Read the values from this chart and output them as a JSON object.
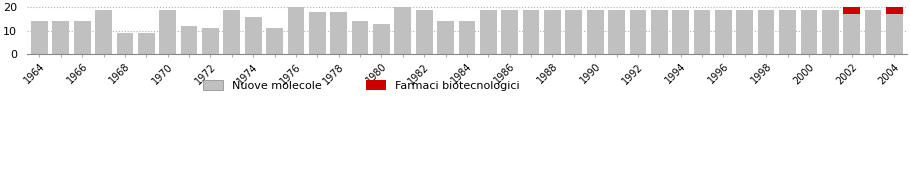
{
  "years": [
    1964,
    1965,
    1966,
    1967,
    1968,
    1969,
    1970,
    1971,
    1972,
    1973,
    1974,
    1975,
    1976,
    1977,
    1978,
    1979,
    1980,
    1981,
    1982,
    1983,
    1984,
    1985,
    1986,
    1987,
    1988,
    1989,
    1990,
    1991,
    1992,
    1993,
    1994,
    1995,
    1996,
    1997,
    1998,
    1999,
    2000,
    2001,
    2002,
    2003,
    2004
  ],
  "nuove_molecole": [
    14,
    14,
    14,
    19,
    9,
    9,
    19,
    12,
    11,
    19,
    16,
    11,
    20,
    18,
    18,
    14,
    13,
    20,
    19,
    14,
    14,
    19,
    19,
    19,
    19,
    19,
    19,
    19,
    19,
    19,
    19,
    19,
    19,
    19,
    19,
    19,
    19,
    19,
    17,
    19,
    17
  ],
  "farmaci_bio": [
    0,
    0,
    0,
    0,
    0,
    0,
    0,
    0,
    0,
    0,
    0,
    0,
    0,
    0,
    0,
    0,
    0,
    0,
    0,
    0,
    0,
    0,
    0,
    0,
    0,
    0,
    0,
    0,
    0,
    0,
    0,
    0,
    0,
    0,
    0,
    0,
    0,
    0,
    3,
    0,
    3
  ],
  "bar_color_gray": "#c0c0c0",
  "bar_color_red": "#cc0000",
  "grid_color": "#b0b0b0",
  "ylim": [
    0,
    22
  ],
  "yticks": [
    0,
    10,
    20
  ],
  "legend_labels": [
    "Nuove molecole",
    "Farmaci biotecnologici"
  ],
  "background_color": "#ffffff",
  "figsize": [
    9.1,
    1.88
  ],
  "dpi": 100
}
